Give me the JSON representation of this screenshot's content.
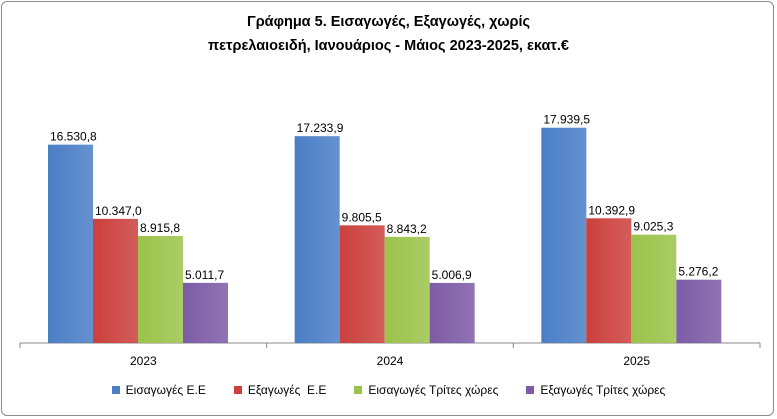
{
  "chart_data": {
    "type": "bar",
    "title_line1": "Γράφημα 5. Εισαγωγές, Εξαγωγές, χωρίς",
    "title_line2": "πετρελαιοειδή, Ιανουάριος - Μάιος 2023-2025, εκατ.€",
    "categories": [
      "2023",
      "2024",
      "2025"
    ],
    "series": [
      {
        "name": "Εισαγωγές Ε.Ε",
        "values": [
          16530.8,
          17233.9,
          17939.5
        ],
        "labels": [
          "16.530,8",
          "17.233,9",
          "17.939,5"
        ],
        "color": "#4a7ec6"
      },
      {
        "name": "Εξαγωγές  Ε.Ε",
        "values": [
          10347.0,
          9805.5,
          10392.9
        ],
        "labels": [
          "10.347,0",
          "9.805,5",
          "10.392,9"
        ],
        "color": "#cb403d"
      },
      {
        "name": "Εισαγωγές Τρίτες χώρες",
        "values": [
          8915.8,
          8843.2,
          9025.3
        ],
        "labels": [
          "8.915,8",
          "8.843,2",
          "9.025,3"
        ],
        "color": "#9bc34a"
      },
      {
        "name": "Εξαγωγές Τρίτες χώρες",
        "values": [
          5011.7,
          5006.9,
          5276.2
        ],
        "labels": [
          "5.011,7",
          "5.006,9",
          "5.276,2"
        ],
        "color": "#7d5ba6"
      }
    ],
    "ylim": [
      0,
      21000
    ],
    "grid": false,
    "legend_position": "bottom"
  }
}
